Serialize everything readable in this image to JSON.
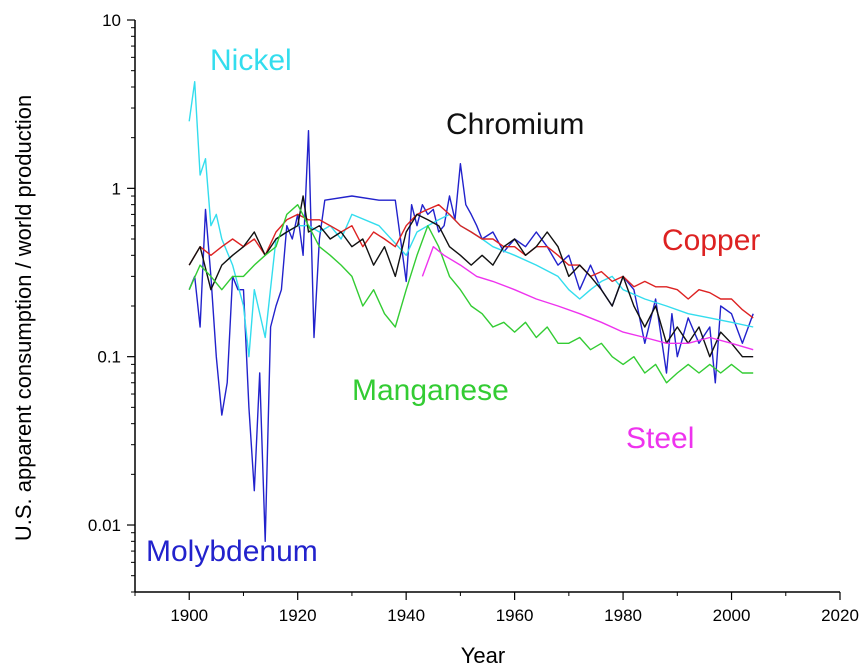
{
  "chart_data": {
    "type": "line",
    "xlabel": "Year",
    "ylabel": "U.S. apparent consumption / world production",
    "xlim": [
      1890,
      2020
    ],
    "ylim": [
      0.004,
      10
    ],
    "yscale": "log",
    "grid": false,
    "x_ticks": [
      "1900",
      "1920",
      "1940",
      "1960",
      "1980",
      "2000",
      "2020"
    ],
    "y_ticks": [
      {
        "value": 10,
        "label": "10"
      },
      {
        "value": 1,
        "label": "1"
      },
      {
        "value": 0.1,
        "label": "0.1"
      },
      {
        "value": 0.01,
        "label": "0.01"
      }
    ],
    "series": [
      {
        "name": "Molybdenum",
        "color": "#2222cc",
        "x": [
          1900,
          1901,
          1902,
          1903,
          1904,
          1905,
          1906,
          1907,
          1908,
          1909,
          1910,
          1911,
          1912,
          1913,
          1914,
          1915,
          1916,
          1917,
          1918,
          1919,
          1920,
          1921,
          1922,
          1923,
          1924,
          1925,
          1930,
          1935,
          1938,
          1940,
          1941,
          1942,
          1943,
          1944,
          1945,
          1946,
          1947,
          1948,
          1949,
          1950,
          1951,
          1952,
          1953,
          1954,
          1956,
          1958,
          1960,
          1962,
          1964,
          1966,
          1968,
          1970,
          1972,
          1974,
          1976,
          1978,
          1980,
          1982,
          1984,
          1986,
          1988,
          1989,
          1990,
          1992,
          1994,
          1996,
          1997,
          1998,
          2000,
          2002,
          2004
        ],
        "y": [
          0.25,
          0.3,
          0.15,
          0.75,
          0.3,
          0.1,
          0.045,
          0.07,
          0.3,
          0.25,
          0.25,
          0.05,
          0.016,
          0.08,
          0.008,
          0.15,
          0.2,
          0.25,
          0.6,
          0.5,
          0.7,
          0.4,
          2.2,
          0.13,
          0.5,
          0.85,
          0.9,
          0.85,
          0.85,
          0.28,
          0.8,
          0.6,
          0.8,
          0.7,
          0.75,
          0.55,
          0.6,
          0.9,
          0.65,
          1.4,
          0.8,
          0.7,
          0.6,
          0.5,
          0.55,
          0.42,
          0.5,
          0.45,
          0.55,
          0.45,
          0.35,
          0.4,
          0.25,
          0.35,
          0.25,
          0.2,
          0.3,
          0.25,
          0.12,
          0.22,
          0.08,
          0.18,
          0.1,
          0.17,
          0.12,
          0.15,
          0.07,
          0.2,
          0.18,
          0.12,
          0.18
        ]
      },
      {
        "name": "Nickel",
        "color": "#33ddee",
        "x": [
          1900,
          1901,
          1902,
          1903,
          1904,
          1905,
          1906,
          1908,
          1910,
          1911,
          1912,
          1914,
          1916,
          1918,
          1920,
          1922,
          1924,
          1926,
          1928,
          1930,
          1935,
          1940,
          1942,
          1944,
          1946,
          1948,
          1950,
          1952,
          1954,
          1956,
          1960,
          1964,
          1968,
          1970,
          1972,
          1974,
          1976,
          1978,
          1980,
          1984,
          1988,
          1992,
          1996,
          2000,
          2004
        ],
        "y": [
          2.5,
          4.3,
          1.2,
          1.5,
          0.6,
          0.7,
          0.5,
          0.35,
          0.2,
          0.1,
          0.25,
          0.13,
          0.5,
          0.55,
          0.6,
          0.6,
          0.55,
          0.6,
          0.5,
          0.7,
          0.6,
          0.4,
          0.55,
          0.6,
          0.65,
          0.7,
          0.6,
          0.55,
          0.5,
          0.45,
          0.4,
          0.35,
          0.3,
          0.25,
          0.22,
          0.25,
          0.28,
          0.3,
          0.25,
          0.22,
          0.2,
          0.18,
          0.17,
          0.16,
          0.15
        ]
      },
      {
        "name": "Copper",
        "color": "#dd2222",
        "x": [
          1900,
          1902,
          1904,
          1906,
          1908,
          1910,
          1912,
          1914,
          1916,
          1918,
          1920,
          1922,
          1924,
          1926,
          1928,
          1930,
          1932,
          1934,
          1936,
          1938,
          1940,
          1942,
          1944,
          1946,
          1948,
          1950,
          1952,
          1954,
          1956,
          1958,
          1960,
          1962,
          1964,
          1966,
          1968,
          1970,
          1972,
          1974,
          1976,
          1978,
          1980,
          1982,
          1984,
          1986,
          1988,
          1990,
          1992,
          1994,
          1996,
          1998,
          2000,
          2002,
          2004
        ],
        "y": [
          0.35,
          0.45,
          0.4,
          0.45,
          0.5,
          0.45,
          0.5,
          0.4,
          0.55,
          0.65,
          0.7,
          0.65,
          0.65,
          0.6,
          0.55,
          0.6,
          0.45,
          0.55,
          0.5,
          0.45,
          0.6,
          0.7,
          0.75,
          0.8,
          0.7,
          0.6,
          0.55,
          0.5,
          0.5,
          0.45,
          0.45,
          0.4,
          0.45,
          0.45,
          0.4,
          0.35,
          0.35,
          0.3,
          0.32,
          0.28,
          0.3,
          0.26,
          0.28,
          0.26,
          0.26,
          0.25,
          0.22,
          0.25,
          0.24,
          0.22,
          0.22,
          0.19,
          0.17
        ]
      },
      {
        "name": "Chromium",
        "color": "#111111",
        "x": [
          1900,
          1902,
          1904,
          1906,
          1908,
          1910,
          1912,
          1914,
          1916,
          1918,
          1920,
          1921,
          1922,
          1924,
          1926,
          1928,
          1930,
          1932,
          1934,
          1936,
          1938,
          1940,
          1942,
          1944,
          1946,
          1948,
          1950,
          1952,
          1954,
          1956,
          1958,
          1960,
          1962,
          1964,
          1966,
          1968,
          1970,
          1972,
          1974,
          1976,
          1978,
          1980,
          1982,
          1984,
          1986,
          1988,
          1990,
          1992,
          1994,
          1996,
          1998,
          2000,
          2002,
          2004
        ],
        "y": [
          0.35,
          0.45,
          0.25,
          0.35,
          0.4,
          0.45,
          0.55,
          0.4,
          0.5,
          0.55,
          0.6,
          0.9,
          0.55,
          0.6,
          0.5,
          0.55,
          0.45,
          0.5,
          0.35,
          0.45,
          0.3,
          0.55,
          0.7,
          0.65,
          0.6,
          0.45,
          0.4,
          0.35,
          0.4,
          0.35,
          0.45,
          0.5,
          0.4,
          0.45,
          0.55,
          0.45,
          0.3,
          0.35,
          0.3,
          0.25,
          0.2,
          0.3,
          0.2,
          0.15,
          0.2,
          0.12,
          0.15,
          0.12,
          0.15,
          0.1,
          0.14,
          0.12,
          0.1,
          0.1
        ]
      },
      {
        "name": "Manganese",
        "color": "#33cc33",
        "x": [
          1900,
          1902,
          1904,
          1906,
          1908,
          1910,
          1912,
          1914,
          1916,
          1918,
          1920,
          1922,
          1924,
          1926,
          1928,
          1930,
          1932,
          1934,
          1936,
          1938,
          1940,
          1942,
          1944,
          1946,
          1948,
          1950,
          1952,
          1954,
          1956,
          1958,
          1960,
          1962,
          1964,
          1966,
          1968,
          1970,
          1972,
          1974,
          1976,
          1978,
          1980,
          1982,
          1984,
          1986,
          1988,
          1990,
          1992,
          1994,
          1996,
          1998,
          2000,
          2002,
          2004
        ],
        "y": [
          0.25,
          0.35,
          0.3,
          0.25,
          0.3,
          0.3,
          0.35,
          0.4,
          0.45,
          0.7,
          0.8,
          0.6,
          0.45,
          0.4,
          0.35,
          0.3,
          0.2,
          0.25,
          0.18,
          0.15,
          0.25,
          0.4,
          0.6,
          0.45,
          0.3,
          0.25,
          0.2,
          0.18,
          0.15,
          0.16,
          0.14,
          0.16,
          0.13,
          0.15,
          0.12,
          0.12,
          0.13,
          0.11,
          0.12,
          0.1,
          0.09,
          0.1,
          0.08,
          0.09,
          0.07,
          0.08,
          0.09,
          0.08,
          0.09,
          0.08,
          0.09,
          0.08,
          0.08
        ]
      },
      {
        "name": "Steel",
        "color": "#ee33ee",
        "x": [
          1943,
          1945,
          1947,
          1950,
          1953,
          1956,
          1960,
          1964,
          1968,
          1972,
          1976,
          1980,
          1984,
          1988,
          1992,
          1996,
          2000,
          2004
        ],
        "y": [
          0.3,
          0.45,
          0.4,
          0.35,
          0.3,
          0.28,
          0.25,
          0.22,
          0.2,
          0.18,
          0.16,
          0.14,
          0.13,
          0.12,
          0.12,
          0.13,
          0.12,
          0.11
        ]
      }
    ],
    "annotations": [
      {
        "text": "Nickel",
        "series": "Nickel"
      },
      {
        "text": "Chromium",
        "series": "Chromium"
      },
      {
        "text": "Copper",
        "series": "Copper"
      },
      {
        "text": "Manganese",
        "series": "Manganese"
      },
      {
        "text": "Steel",
        "series": "Steel"
      },
      {
        "text": "Molybdenum",
        "series": "Molybdenum"
      }
    ]
  }
}
